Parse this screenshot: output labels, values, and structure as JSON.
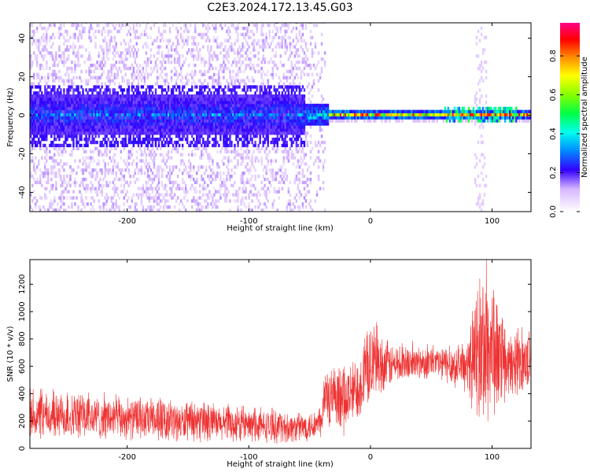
{
  "title": "C2E3.2024.172.13.45.G03",
  "chart_data": [
    {
      "type": "heatmap",
      "xlabel": "Height of straight line (km)",
      "ylabel": "Frequency (Hz)",
      "xlim": [
        -280,
        132
      ],
      "ylim": [
        -50,
        48
      ],
      "xticks": [
        -200,
        -100,
        0,
        100
      ],
      "yticks": [
        -40,
        -20,
        0,
        20,
        40
      ],
      "grid": false,
      "colorbar": {
        "label": "Normalized spectral amplitude",
        "range": [
          0.0,
          0.97
        ],
        "ticks": [
          0.0,
          0.2,
          0.4,
          0.6,
          0.8
        ]
      },
      "regions": [
        {
          "x_range": [
            -280,
            -55
          ],
          "description_level": "broadband noise",
          "band_halfwidth_hz": 10,
          "peak_amplitude": 0.4
        },
        {
          "x_range": [
            -55,
            -35
          ],
          "description_level": "transition",
          "band_halfwidth_hz": 5,
          "peak_amplitude": 0.6
        },
        {
          "x_range": [
            -35,
            132
          ],
          "description_level": "narrow signal",
          "band_halfwidth_hz": 2,
          "peak_amplitude": 0.95
        }
      ]
    },
    {
      "type": "line",
      "xlabel": "Height of straight line (km)",
      "ylabel": "SNR (10 * v/v)",
      "xlim": [
        -280,
        132
      ],
      "ylim": [
        0,
        1380
      ],
      "xticks": [
        -200,
        -100,
        0,
        100
      ],
      "yticks": [
        0,
        200,
        400,
        600,
        800,
        1000,
        1200
      ],
      "color": "#ee3333",
      "series_profile": [
        {
          "x": -280,
          "low": 40,
          "high": 420
        },
        {
          "x": -250,
          "low": 50,
          "high": 420
        },
        {
          "x": -200,
          "low": 50,
          "high": 380
        },
        {
          "x": -150,
          "low": 40,
          "high": 330
        },
        {
          "x": -100,
          "low": 30,
          "high": 300
        },
        {
          "x": -60,
          "low": 30,
          "high": 270
        },
        {
          "x": -40,
          "low": 60,
          "high": 300
        },
        {
          "x": -38,
          "low": 150,
          "high": 620
        },
        {
          "x": -25,
          "low": 40,
          "high": 560
        },
        {
          "x": -10,
          "low": 180,
          "high": 720
        },
        {
          "x": 0,
          "low": 300,
          "high": 930
        },
        {
          "x": 20,
          "low": 460,
          "high": 760
        },
        {
          "x": 50,
          "low": 500,
          "high": 760
        },
        {
          "x": 80,
          "low": 400,
          "high": 780
        },
        {
          "x": 90,
          "low": 40,
          "high": 1380
        },
        {
          "x": 100,
          "low": 120,
          "high": 1380
        },
        {
          "x": 110,
          "low": 300,
          "high": 850
        },
        {
          "x": 132,
          "low": 450,
          "high": 880
        }
      ]
    }
  ]
}
